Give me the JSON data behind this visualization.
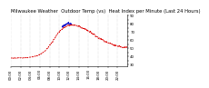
{
  "title": "Milwaukee Weather  Outdoor Temp (vs)  Heat Index per Minute (Last 24 Hours)",
  "background_color": "#ffffff",
  "line_color_main": "#dd0000",
  "line_color_alt": "#0000cc",
  "ylim": [
    28,
    92
  ],
  "ytick_labels": [
    "30",
    "",
    "40",
    "",
    "50",
    "",
    "60",
    "",
    "70",
    "",
    "80",
    "",
    "90"
  ],
  "ytick_values": [
    30,
    35,
    40,
    45,
    50,
    55,
    60,
    65,
    70,
    75,
    80,
    85,
    90
  ],
  "num_points": 1440,
  "title_fontsize": 3.8,
  "tick_fontsize": 2.8,
  "line_width": 0.55
}
